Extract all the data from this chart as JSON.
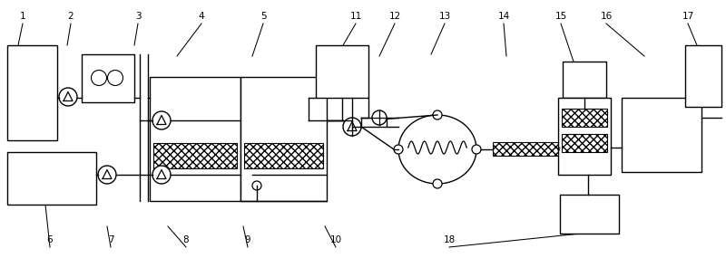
{
  "bg": "#ffffff",
  "lc": "#000000",
  "figsize": [
    8.0,
    2.85
  ],
  "dpi": 100
}
